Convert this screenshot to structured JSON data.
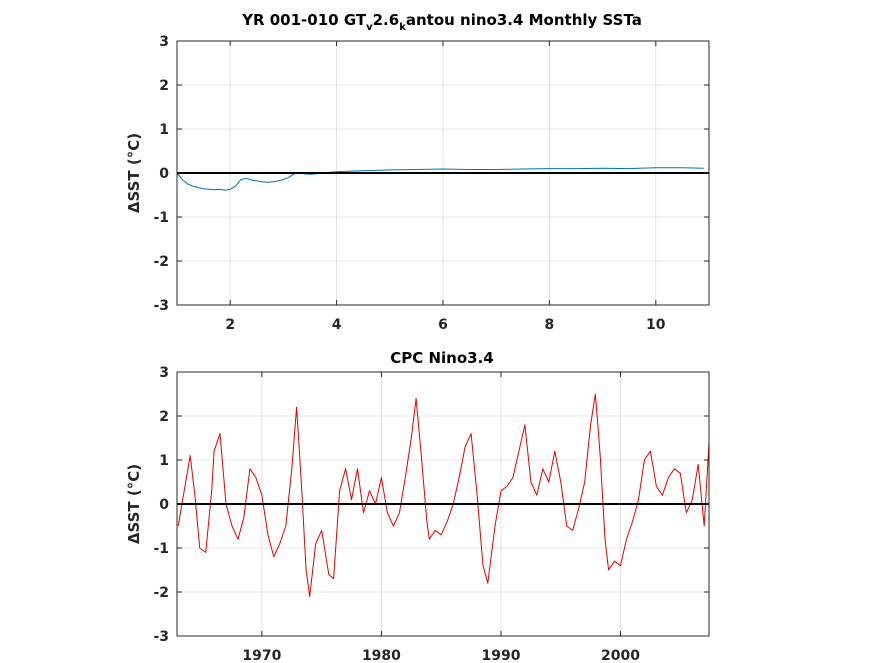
{
  "figure": {
    "colors": {
      "model_series": "#0072bd",
      "observed_series": "#e00000",
      "zero_line": "#000000"
    }
  },
  "chart_data": [
    {
      "type": "line",
      "title": {
        "part1": "YR 001-010 GT",
        "sub1": "v",
        "part2": "2.6",
        "sub2": "k",
        "part3": "antou nino3.4 Monthly SSTa"
      },
      "xlabel": "",
      "ylabel": "ΔSST (°C)",
      "xlim": [
        1,
        11
      ],
      "ylim": [
        -3,
        3
      ],
      "xticks": [
        2,
        4,
        6,
        8,
        10
      ],
      "yticks": [
        3,
        2,
        1,
        0,
        -1,
        -2,
        -3
      ],
      "xtick_labels": [
        "2",
        "4",
        "6",
        "8",
        "10"
      ],
      "ytick_labels": [
        "3",
        "2",
        "1",
        "0",
        "-1",
        "-2",
        "-3"
      ],
      "grid": true,
      "zero_line": true,
      "series": [
        {
          "color": "#0072bd",
          "x": [
            1.0,
            1.1,
            1.2,
            1.3,
            1.4,
            1.5,
            1.6,
            1.7,
            1.8,
            1.9,
            2.0,
            2.1,
            2.2,
            2.3,
            2.4,
            2.5,
            2.6,
            2.7,
            2.8,
            2.9,
            3.0,
            3.1,
            3.2,
            3.3,
            3.4,
            3.5,
            3.6,
            3.8,
            4.0,
            4.2,
            4.5,
            5.0,
            5.5,
            6.0,
            6.5,
            7.0,
            7.5,
            8.0,
            8.5,
            9.0,
            9.5,
            10.0,
            10.5,
            10.9
          ],
          "y": [
            0.0,
            -0.15,
            -0.25,
            -0.3,
            -0.33,
            -0.36,
            -0.37,
            -0.38,
            -0.37,
            -0.39,
            -0.37,
            -0.3,
            -0.15,
            -0.12,
            -0.16,
            -0.18,
            -0.2,
            -0.21,
            -0.2,
            -0.18,
            -0.15,
            -0.1,
            -0.02,
            0.0,
            -0.02,
            -0.03,
            -0.02,
            0.01,
            0.03,
            0.04,
            0.05,
            0.07,
            0.08,
            0.09,
            0.08,
            0.08,
            0.09,
            0.1,
            0.1,
            0.11,
            0.1,
            0.12,
            0.12,
            0.11
          ]
        }
      ]
    },
    {
      "type": "line",
      "title": "CPC Nino3.4",
      "xlabel": "",
      "ylabel": "ΔSST (°C)",
      "xlim": [
        1962.9,
        2007.4
      ],
      "ylim": [
        -3,
        3
      ],
      "xticks": [
        1970,
        1980,
        1990,
        2000
      ],
      "yticks": [
        3,
        2,
        1,
        0,
        -1,
        -2,
        -3
      ],
      "xtick_labels": [
        "1970",
        "1980",
        "1990",
        "2000"
      ],
      "ytick_labels": [
        "3",
        "2",
        "1",
        "0",
        "-1",
        "-2",
        "-3"
      ],
      "grid": true,
      "zero_line": true,
      "series": [
        {
          "color": "#e00000",
          "x": [
            1963.0,
            1963.5,
            1964.0,
            1964.4,
            1964.8,
            1965.3,
            1965.8,
            1966.0,
            1966.5,
            1967.0,
            1967.5,
            1968.0,
            1968.5,
            1969.0,
            1969.5,
            1970.0,
            1970.5,
            1971.0,
            1971.5,
            1972.0,
            1972.5,
            1972.9,
            1973.3,
            1973.7,
            1974.0,
            1974.5,
            1975.0,
            1975.6,
            1976.0,
            1976.5,
            1977.0,
            1977.5,
            1978.0,
            1978.5,
            1979.0,
            1979.5,
            1980.0,
            1980.5,
            1981.0,
            1981.5,
            1982.0,
            1982.5,
            1982.9,
            1983.3,
            1983.8,
            1984.0,
            1984.5,
            1985.0,
            1985.5,
            1986.0,
            1986.5,
            1987.0,
            1987.5,
            1988.0,
            1988.5,
            1988.9,
            1989.5,
            1990.0,
            1990.5,
            1991.0,
            1991.5,
            1992.0,
            1992.5,
            1993.0,
            1993.5,
            1994.0,
            1994.5,
            1995.0,
            1995.5,
            1996.0,
            1996.5,
            1997.0,
            1997.5,
            1997.9,
            1998.3,
            1998.7,
            1999.0,
            1999.5,
            2000.0,
            2000.5,
            2001.0,
            2001.5,
            2002.0,
            2002.5,
            2003.0,
            2003.5,
            2004.0,
            2004.5,
            2005.0,
            2005.5,
            2006.0,
            2006.5,
            2007.0,
            2007.4
          ],
          "y": [
            -0.5,
            0.3,
            1.1,
            0.2,
            -1.0,
            -1.1,
            0.3,
            1.2,
            1.6,
            0.0,
            -0.5,
            -0.8,
            -0.3,
            0.8,
            0.6,
            0.2,
            -0.7,
            -1.2,
            -0.9,
            -0.5,
            0.8,
            2.2,
            0.5,
            -1.5,
            -2.1,
            -0.9,
            -0.6,
            -1.6,
            -1.7,
            0.3,
            0.8,
            0.1,
            0.8,
            -0.2,
            0.3,
            0.0,
            0.6,
            -0.2,
            -0.5,
            -0.2,
            0.6,
            1.5,
            2.4,
            1.2,
            -0.4,
            -0.8,
            -0.6,
            -0.7,
            -0.4,
            0.0,
            0.6,
            1.3,
            1.6,
            0.2,
            -1.4,
            -1.8,
            -0.5,
            0.3,
            0.4,
            0.6,
            1.2,
            1.8,
            0.5,
            0.2,
            0.8,
            0.5,
            1.2,
            0.5,
            -0.5,
            -0.6,
            -0.1,
            0.5,
            1.8,
            2.5,
            1.1,
            -0.8,
            -1.5,
            -1.3,
            -1.4,
            -0.8,
            -0.4,
            0.1,
            1.0,
            1.2,
            0.4,
            0.2,
            0.6,
            0.8,
            0.7,
            -0.2,
            0.1,
            0.9,
            -0.5,
            1.4
          ]
        }
      ]
    }
  ]
}
